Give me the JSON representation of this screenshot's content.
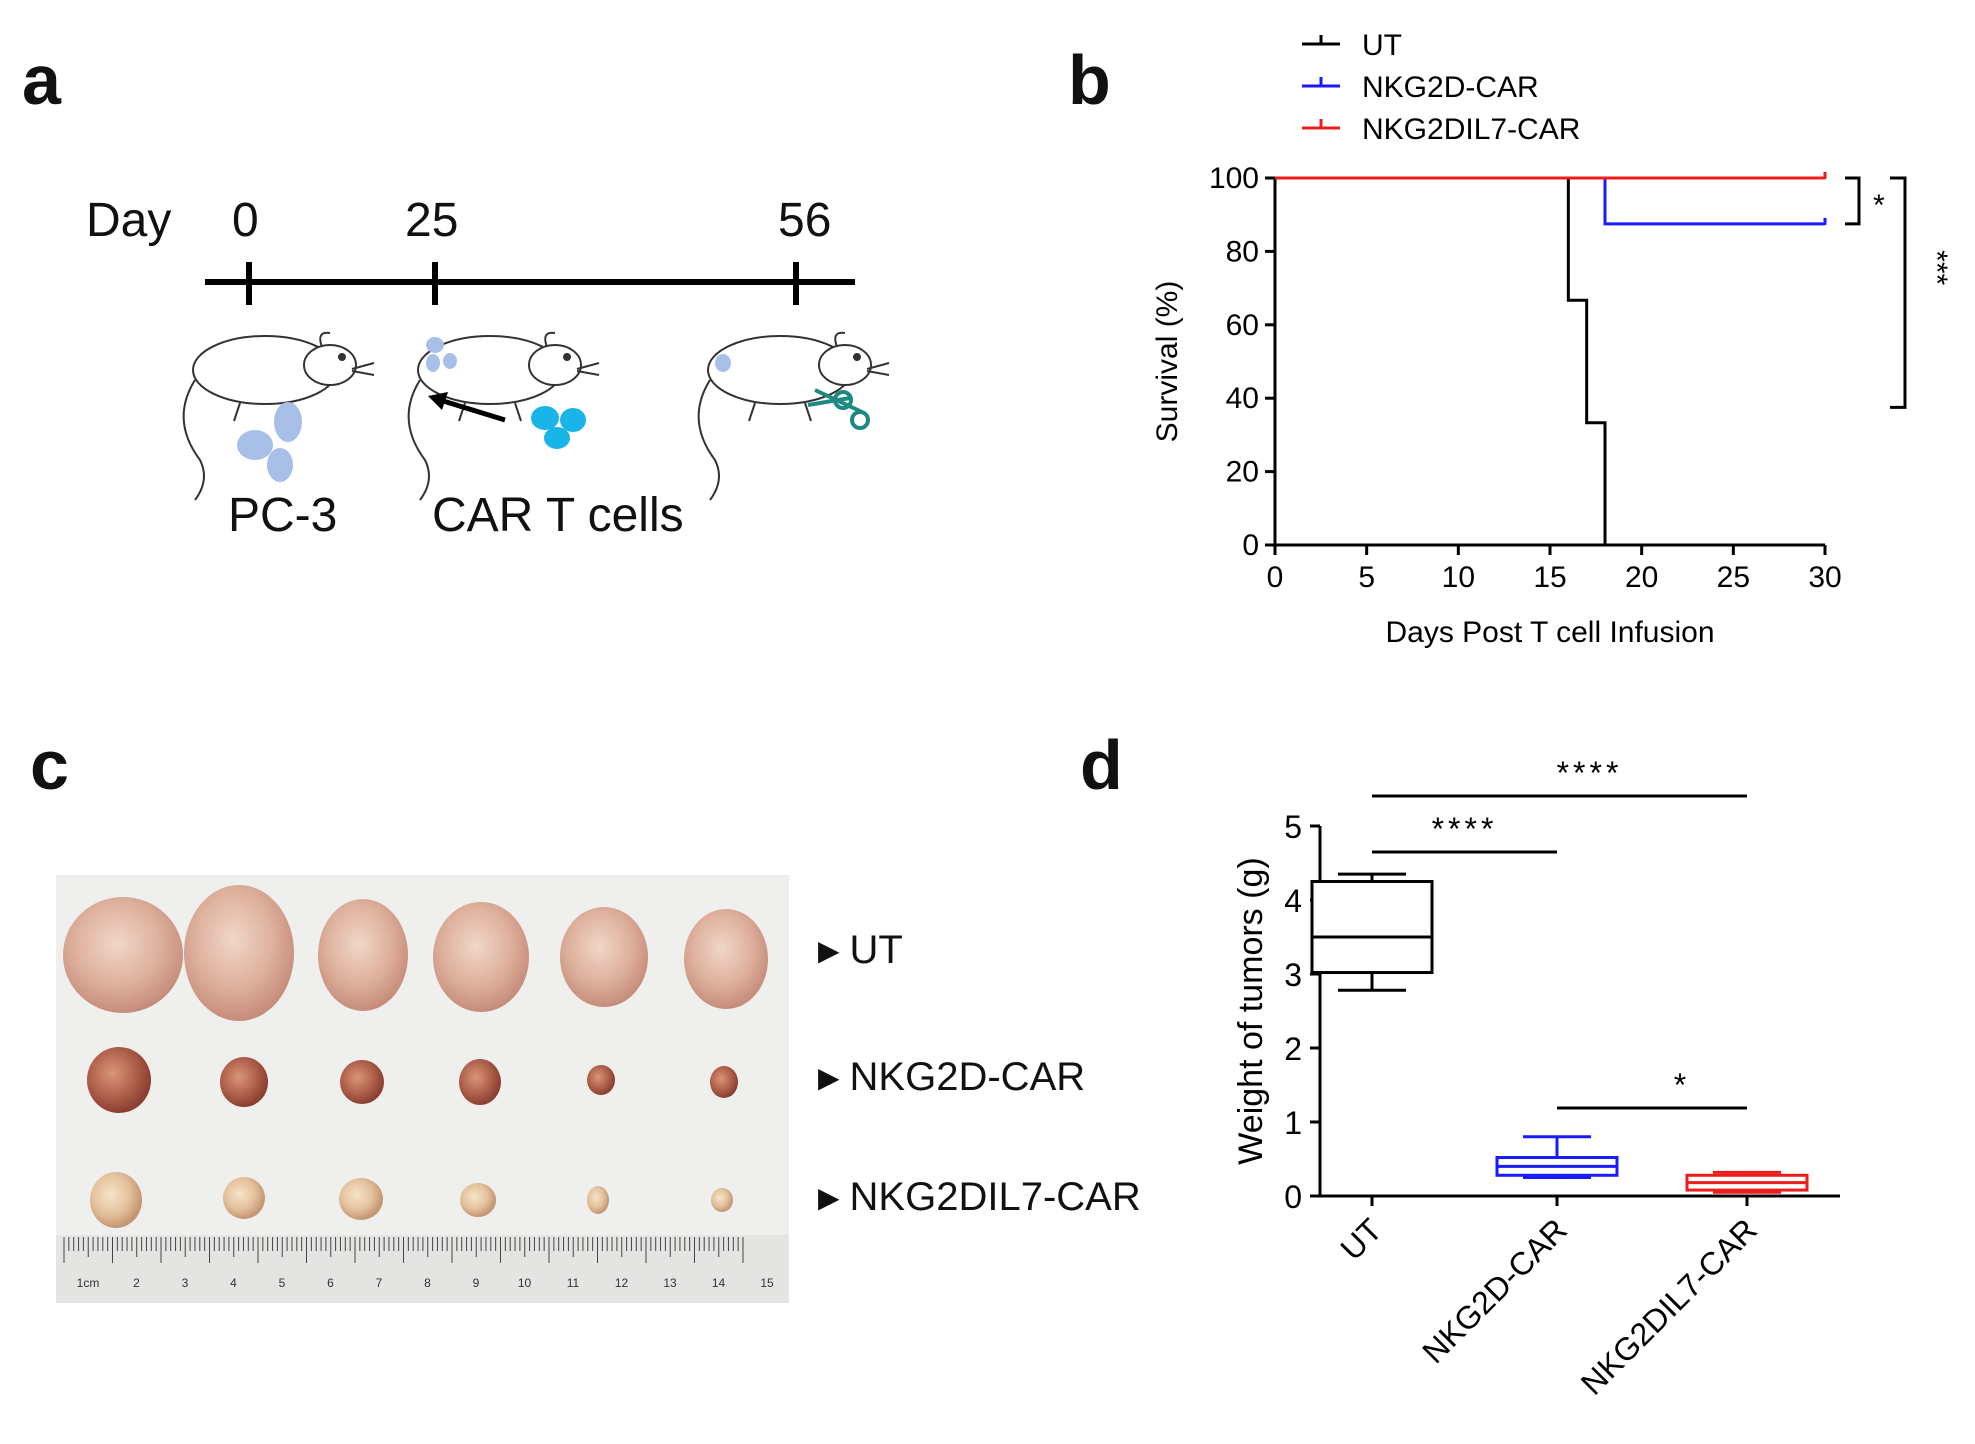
{
  "panels": {
    "a": "a",
    "b": "b",
    "c": "c",
    "d": "d"
  },
  "timeline": {
    "day_label": "Day",
    "days": [
      "0",
      "25",
      "56"
    ],
    "labels": [
      "PC-3",
      "CAR T cells"
    ]
  },
  "colors": {
    "UT": "#000000",
    "NKG2D-CAR": "#1a1aff",
    "NKG2DIL7-CAR": "#ee1c1c",
    "cells_pc3": "#a8bfe8",
    "cells_car": "#19b4e8"
  },
  "chart_data": [
    {
      "id": "survival",
      "type": "line",
      "step": true,
      "xlabel": "Days Post T cell Infusion",
      "ylabel": "Survival (%)",
      "xlim": [
        0,
        30
      ],
      "ylim": [
        0,
        100
      ],
      "xticks": [
        0,
        5,
        10,
        15,
        20,
        25,
        30
      ],
      "yticks": [
        0,
        20,
        40,
        60,
        80,
        100
      ],
      "legend": [
        "UT",
        "NKG2D-CAR",
        "NKG2DIL7-CAR"
      ],
      "legend_position": "top-left",
      "series": [
        {
          "name": "UT",
          "x": [
            0,
            16,
            16,
            17,
            17,
            18,
            18
          ],
          "y": [
            100,
            100,
            66.7,
            66.7,
            33.3,
            33.3,
            0
          ]
        },
        {
          "name": "NKG2D-CAR",
          "x": [
            18,
            18,
            30
          ],
          "y": [
            100,
            87.5,
            87.5
          ]
        },
        {
          "name": "NKG2DIL7-CAR",
          "x": [
            0,
            30
          ],
          "y": [
            100,
            100
          ]
        }
      ],
      "significance": [
        "*",
        "***"
      ]
    },
    {
      "id": "tumor_weight",
      "type": "box",
      "ylabel": "Weight of tumors (g)",
      "ylim": [
        0,
        5
      ],
      "yticks": [
        0,
        1,
        2,
        3,
        4,
        5
      ],
      "categories": [
        "UT",
        "NKG2D-CAR",
        "NKG2DIL7-CAR"
      ],
      "boxes": [
        {
          "name": "UT",
          "min": 2.78,
          "q1": 3.02,
          "median": 3.5,
          "q3": 4.25,
          "max": 4.35
        },
        {
          "name": "NKG2D-CAR",
          "min": 0.25,
          "q1": 0.28,
          "median": 0.4,
          "q3": 0.52,
          "max": 0.8
        },
        {
          "name": "NKG2DIL7-CAR",
          "min": 0.05,
          "q1": 0.08,
          "median": 0.18,
          "q3": 0.28,
          "max": 0.32
        }
      ],
      "significance": [
        {
          "from": "UT",
          "to": "NKG2DIL7-CAR",
          "label": "****"
        },
        {
          "from": "UT",
          "to": "NKG2D-CAR",
          "label": "****"
        },
        {
          "from": "NKG2D-CAR",
          "to": "NKG2DIL7-CAR",
          "label": "*"
        }
      ]
    }
  ],
  "photo": {
    "row_labels": [
      "UT",
      "NKG2D-CAR",
      "NKG2DIL7-CAR"
    ],
    "ruler_numbers": [
      "1cm",
      "2",
      "3",
      "4",
      "5",
      "6",
      "7",
      "8",
      "9",
      "10",
      "11",
      "12",
      "13",
      "14",
      "15"
    ]
  }
}
